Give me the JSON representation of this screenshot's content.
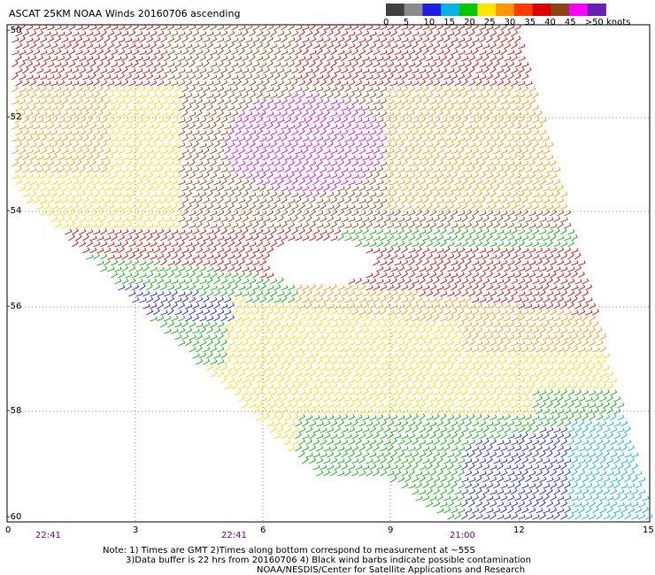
{
  "title": "ASCAT 25KM NOAA Winds 20160706 ascending",
  "colorbar": {
    "labels": [
      "0",
      "5",
      "10",
      "15",
      "20",
      "25",
      "30",
      "35",
      "40",
      "45",
      ">50 knots"
    ],
    "colors": [
      "#404040",
      "#8a8a8a",
      "#1e1ee6",
      "#00b4e6",
      "#00c800",
      "#ffe600",
      "#ff9600",
      "#ff3c00",
      "#dc0000",
      "#8b4513",
      "#ff00ff",
      "#6a1fb4"
    ]
  },
  "lat_labels": [
    "-50",
    "-52",
    "-54",
    "-56",
    "-58",
    "-60"
  ],
  "lon_labels": [
    "0",
    "3",
    "6",
    "9",
    "12",
    "15"
  ],
  "time_labels": [
    "22:41",
    "22:41",
    "21:00"
  ],
  "notes": {
    "line1": "Note: 1) Times are GMT  2)Times along bottom correspond to measurement at ~55S",
    "line2": "3)Data buffer is 22 hrs from 20160706  4) Black wind barbs indicate possible contamination",
    "line3": "NOAA/NESDIS/Center for Satellite Applications and Research"
  }
}
